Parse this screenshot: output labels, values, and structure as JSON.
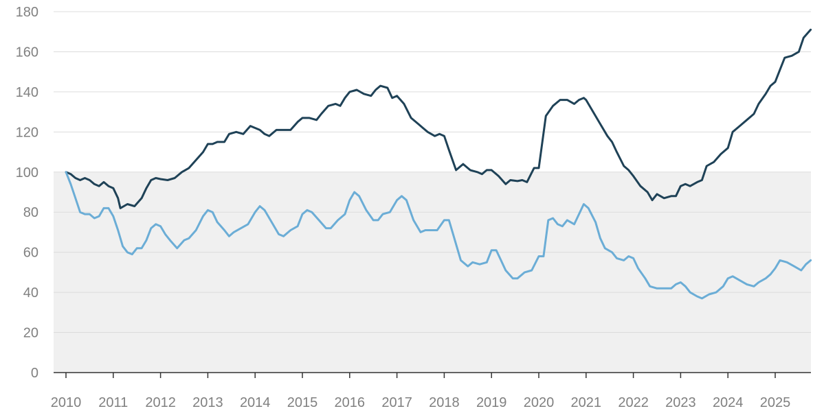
{
  "chart_data": {
    "type": "line",
    "title": "",
    "xlabel": "",
    "ylabel": "",
    "ylim": [
      0,
      180
    ],
    "xlim": [
      2010,
      2025.85
    ],
    "y_ticks": [
      "0",
      "20",
      "40",
      "60",
      "80",
      "100",
      "120",
      "140",
      "160",
      "180"
    ],
    "x_ticks": [
      "2010",
      "2011",
      "2012",
      "2013",
      "2014",
      "2015",
      "2016",
      "2017",
      "2018",
      "2019",
      "2020",
      "2021",
      "2022",
      "2023",
      "2024",
      "2025"
    ],
    "grid": true,
    "shaded_band": {
      "from": 0,
      "to": 100,
      "color": "#f0f0f0"
    },
    "series": [
      {
        "color": "#1f4257",
        "points": [
          [
            2010.0,
            100
          ],
          [
            2010.1,
            99
          ],
          [
            2010.2,
            97
          ],
          [
            2010.3,
            96
          ],
          [
            2010.4,
            97
          ],
          [
            2010.5,
            96
          ],
          [
            2010.6,
            94
          ],
          [
            2010.7,
            93
          ],
          [
            2010.8,
            95
          ],
          [
            2010.9,
            93
          ],
          [
            2011.0,
            92
          ],
          [
            2011.1,
            87
          ],
          [
            2011.15,
            82
          ],
          [
            2011.3,
            84
          ],
          [
            2011.45,
            83
          ],
          [
            2011.6,
            87
          ],
          [
            2011.7,
            92
          ],
          [
            2011.8,
            96
          ],
          [
            2011.9,
            97
          ],
          [
            2012.0,
            96.5
          ],
          [
            2012.15,
            96
          ],
          [
            2012.3,
            97
          ],
          [
            2012.45,
            100
          ],
          [
            2012.6,
            102
          ],
          [
            2012.75,
            106
          ],
          [
            2012.9,
            110
          ],
          [
            2013.0,
            114
          ],
          [
            2013.1,
            114
          ],
          [
            2013.2,
            115
          ],
          [
            2013.35,
            115
          ],
          [
            2013.45,
            119
          ],
          [
            2013.6,
            120
          ],
          [
            2013.75,
            119
          ],
          [
            2013.9,
            123
          ],
          [
            2014.0,
            122
          ],
          [
            2014.1,
            121
          ],
          [
            2014.2,
            119
          ],
          [
            2014.3,
            118
          ],
          [
            2014.45,
            121
          ],
          [
            2014.6,
            121
          ],
          [
            2014.75,
            121
          ],
          [
            2014.9,
            125
          ],
          [
            2015.0,
            127
          ],
          [
            2015.15,
            127
          ],
          [
            2015.3,
            126
          ],
          [
            2015.4,
            129
          ],
          [
            2015.55,
            133
          ],
          [
            2015.7,
            134
          ],
          [
            2015.8,
            133
          ],
          [
            2015.9,
            137
          ],
          [
            2016.0,
            140
          ],
          [
            2016.15,
            141
          ],
          [
            2016.3,
            139
          ],
          [
            2016.45,
            138
          ],
          [
            2016.55,
            141
          ],
          [
            2016.65,
            143
          ],
          [
            2016.8,
            142
          ],
          [
            2016.9,
            137
          ],
          [
            2017.0,
            138
          ],
          [
            2017.15,
            134
          ],
          [
            2017.3,
            127
          ],
          [
            2017.45,
            124
          ],
          [
            2017.55,
            122
          ],
          [
            2017.65,
            120
          ],
          [
            2017.8,
            118
          ],
          [
            2017.9,
            119
          ],
          [
            2018.0,
            118
          ],
          [
            2018.1,
            111
          ],
          [
            2018.25,
            101
          ],
          [
            2018.4,
            104
          ],
          [
            2018.55,
            101
          ],
          [
            2018.7,
            100
          ],
          [
            2018.8,
            99
          ],
          [
            2018.9,
            101
          ],
          [
            2019.0,
            101
          ],
          [
            2019.15,
            98
          ],
          [
            2019.3,
            94
          ],
          [
            2019.4,
            96
          ],
          [
            2019.55,
            95.5
          ],
          [
            2019.65,
            96
          ],
          [
            2019.75,
            95
          ],
          [
            2019.9,
            102
          ],
          [
            2020.0,
            102
          ],
          [
            2020.15,
            128
          ],
          [
            2020.3,
            133
          ],
          [
            2020.45,
            136
          ],
          [
            2020.6,
            136
          ],
          [
            2020.75,
            134
          ],
          [
            2020.85,
            136
          ],
          [
            2020.95,
            137
          ],
          [
            2021.0,
            136
          ],
          [
            2021.15,
            130
          ],
          [
            2021.3,
            124
          ],
          [
            2021.45,
            118
          ],
          [
            2021.55,
            115
          ],
          [
            2021.65,
            110
          ],
          [
            2021.8,
            103
          ],
          [
            2021.9,
            101
          ],
          [
            2022.0,
            98
          ],
          [
            2022.15,
            93
          ],
          [
            2022.3,
            90
          ],
          [
            2022.4,
            86
          ],
          [
            2022.5,
            89
          ],
          [
            2022.65,
            87
          ],
          [
            2022.8,
            88
          ],
          [
            2022.9,
            88
          ],
          [
            2023.0,
            93
          ],
          [
            2023.1,
            94
          ],
          [
            2023.2,
            93
          ],
          [
            2023.35,
            95
          ],
          [
            2023.45,
            96
          ],
          [
            2023.55,
            103
          ],
          [
            2023.7,
            105
          ],
          [
            2023.85,
            109
          ],
          [
            2024.0,
            112
          ],
          [
            2024.1,
            120
          ],
          [
            2024.25,
            123
          ],
          [
            2024.4,
            126
          ],
          [
            2024.55,
            129
          ],
          [
            2024.65,
            134
          ],
          [
            2024.8,
            139
          ],
          [
            2024.9,
            143
          ],
          [
            2025.0,
            145
          ],
          [
            2025.1,
            151
          ],
          [
            2025.2,
            157
          ],
          [
            2025.35,
            158
          ],
          [
            2025.5,
            160
          ],
          [
            2025.6,
            167
          ],
          [
            2025.75,
            171
          ]
        ]
      },
      {
        "color": "#6badd6",
        "points": [
          [
            2010.0,
            100
          ],
          [
            2010.1,
            94
          ],
          [
            2010.2,
            87
          ],
          [
            2010.3,
            80
          ],
          [
            2010.4,
            79
          ],
          [
            2010.5,
            79
          ],
          [
            2010.6,
            77
          ],
          [
            2010.7,
            78
          ],
          [
            2010.8,
            82
          ],
          [
            2010.9,
            82
          ],
          [
            2011.0,
            78
          ],
          [
            2011.1,
            71
          ],
          [
            2011.2,
            63
          ],
          [
            2011.3,
            60
          ],
          [
            2011.4,
            59
          ],
          [
            2011.5,
            62
          ],
          [
            2011.6,
            62
          ],
          [
            2011.7,
            66
          ],
          [
            2011.8,
            72
          ],
          [
            2011.9,
            74
          ],
          [
            2012.0,
            73
          ],
          [
            2012.1,
            69
          ],
          [
            2012.2,
            66
          ],
          [
            2012.35,
            62
          ],
          [
            2012.5,
            66
          ],
          [
            2012.6,
            67
          ],
          [
            2012.75,
            71
          ],
          [
            2012.9,
            78
          ],
          [
            2013.0,
            81
          ],
          [
            2013.1,
            80
          ],
          [
            2013.2,
            75
          ],
          [
            2013.35,
            71
          ],
          [
            2013.45,
            68
          ],
          [
            2013.55,
            70
          ],
          [
            2013.7,
            72
          ],
          [
            2013.85,
            74
          ],
          [
            2014.0,
            80
          ],
          [
            2014.1,
            83
          ],
          [
            2014.2,
            81
          ],
          [
            2014.35,
            75
          ],
          [
            2014.5,
            69
          ],
          [
            2014.6,
            68
          ],
          [
            2014.75,
            71
          ],
          [
            2014.9,
            73
          ],
          [
            2015.0,
            79
          ],
          [
            2015.1,
            81
          ],
          [
            2015.2,
            80
          ],
          [
            2015.35,
            76
          ],
          [
            2015.5,
            72
          ],
          [
            2015.6,
            72
          ],
          [
            2015.75,
            76
          ],
          [
            2015.9,
            79
          ],
          [
            2016.0,
            86
          ],
          [
            2016.1,
            90
          ],
          [
            2016.2,
            88
          ],
          [
            2016.35,
            81
          ],
          [
            2016.5,
            76
          ],
          [
            2016.6,
            76
          ],
          [
            2016.7,
            79
          ],
          [
            2016.85,
            80
          ],
          [
            2017.0,
            86
          ],
          [
            2017.1,
            88
          ],
          [
            2017.2,
            86
          ],
          [
            2017.35,
            76
          ],
          [
            2017.5,
            70
          ],
          [
            2017.6,
            71
          ],
          [
            2017.7,
            71
          ],
          [
            2017.85,
            71
          ],
          [
            2018.0,
            76
          ],
          [
            2018.1,
            76
          ],
          [
            2018.2,
            68
          ],
          [
            2018.35,
            56
          ],
          [
            2018.5,
            53
          ],
          [
            2018.6,
            55
          ],
          [
            2018.75,
            54
          ],
          [
            2018.9,
            55
          ],
          [
            2019.0,
            61
          ],
          [
            2019.1,
            61
          ],
          [
            2019.2,
            56
          ],
          [
            2019.3,
            51
          ],
          [
            2019.45,
            47
          ],
          [
            2019.55,
            47
          ],
          [
            2019.7,
            50
          ],
          [
            2019.85,
            51
          ],
          [
            2020.0,
            58
          ],
          [
            2020.1,
            58
          ],
          [
            2020.2,
            76
          ],
          [
            2020.3,
            77
          ],
          [
            2020.4,
            74
          ],
          [
            2020.5,
            73
          ],
          [
            2020.6,
            76
          ],
          [
            2020.75,
            74
          ],
          [
            2020.85,
            79
          ],
          [
            2020.95,
            84
          ],
          [
            2021.05,
            82
          ],
          [
            2021.2,
            75
          ],
          [
            2021.3,
            67
          ],
          [
            2021.4,
            62
          ],
          [
            2021.55,
            60
          ],
          [
            2021.65,
            57
          ],
          [
            2021.8,
            56
          ],
          [
            2021.9,
            58
          ],
          [
            2022.0,
            57
          ],
          [
            2022.1,
            52
          ],
          [
            2022.25,
            47
          ],
          [
            2022.35,
            43
          ],
          [
            2022.5,
            42
          ],
          [
            2022.65,
            42
          ],
          [
            2022.8,
            42
          ],
          [
            2022.9,
            44
          ],
          [
            2023.0,
            45
          ],
          [
            2023.1,
            43
          ],
          [
            2023.2,
            40
          ],
          [
            2023.35,
            38
          ],
          [
            2023.45,
            37
          ],
          [
            2023.6,
            39
          ],
          [
            2023.75,
            40
          ],
          [
            2023.9,
            43
          ],
          [
            2024.0,
            47
          ],
          [
            2024.1,
            48
          ],
          [
            2024.25,
            46
          ],
          [
            2024.4,
            44
          ],
          [
            2024.55,
            43
          ],
          [
            2024.65,
            45
          ],
          [
            2024.8,
            47
          ],
          [
            2024.9,
            49
          ],
          [
            2025.0,
            52
          ],
          [
            2025.1,
            56
          ],
          [
            2025.25,
            55
          ],
          [
            2025.4,
            53
          ],
          [
            2025.55,
            51
          ],
          [
            2025.65,
            54
          ],
          [
            2025.75,
            56
          ]
        ]
      }
    ]
  }
}
